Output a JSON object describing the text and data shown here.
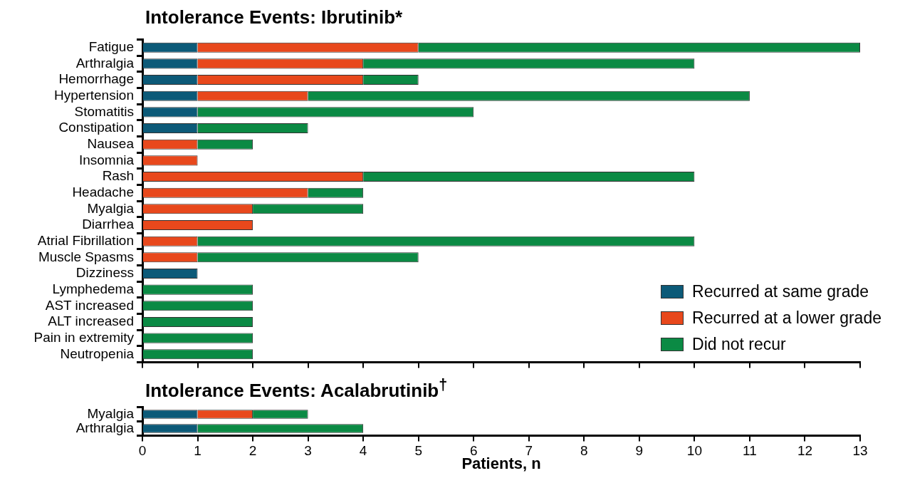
{
  "chart_data": [
    {
      "type": "bar",
      "title": "Intolerance Events: Ibrutinib*",
      "orientation": "horizontal",
      "stacked": true,
      "grid": false,
      "legend": "bottom right",
      "tick_labels": "y",
      "xlim": [
        0,
        13
      ],
      "xticks": [
        0,
        1,
        2,
        3,
        4,
        5,
        6,
        7,
        8,
        9,
        10,
        11,
        12,
        13
      ],
      "categories": [
        "Fatigue",
        "Arthralgia",
        "Hemorrhage",
        "Hypertension",
        "Stomatitis",
        "Constipation",
        "Nausea",
        "Insomnia",
        "Rash",
        "Headache",
        "Myalgia",
        "Diarrhea",
        "Atrial Fibrillation",
        "Muscle Spasms",
        "Dizziness",
        "Lymphedema",
        "AST increased",
        "ALT increased",
        "Pain in extremity",
        "Neutropenia"
      ],
      "series": [
        {
          "name": "Recurred at same grade",
          "color": "#0c5a78",
          "values": [
            1,
            1,
            1,
            1,
            1,
            1,
            0,
            0,
            0,
            0,
            0,
            0,
            0,
            0,
            1,
            0,
            0,
            0,
            0,
            0
          ]
        },
        {
          "name": "Recurred at a lower grade",
          "color": "#e8481c",
          "values": [
            4,
            3,
            3,
            2,
            0,
            0,
            1,
            1,
            4,
            3,
            2,
            2,
            1,
            1,
            0,
            0,
            0,
            0,
            0,
            0
          ]
        },
        {
          "name": "Did not recur",
          "color": "#0b8a44",
          "values": [
            8,
            6,
            1,
            8,
            5,
            2,
            1,
            0,
            6,
            1,
            2,
            0,
            9,
            4,
            0,
            2,
            2,
            2,
            2,
            2
          ]
        }
      ]
    },
    {
      "type": "bar",
      "title": "Intolerance Events: Acalabrutinib$^{†}$",
      "orientation": "horizontal",
      "stacked": true,
      "grid": false,
      "xlabel": "Patients, n",
      "xlim": [
        0,
        13
      ],
      "xticks": [
        0,
        1,
        2,
        3,
        4,
        5,
        6,
        7,
        8,
        9,
        10,
        11,
        12,
        13
      ],
      "categories": [
        "Myalgia",
        "Arthralgia"
      ],
      "series": [
        {
          "color": "#0c5a78",
          "values": [
            1,
            1
          ]
        },
        {
          "color": "#e8481c",
          "values": [
            1,
            0
          ]
        },
        {
          "color": "#0b8a44",
          "values": [
            1,
            3
          ]
        }
      ]
    }
  ]
}
